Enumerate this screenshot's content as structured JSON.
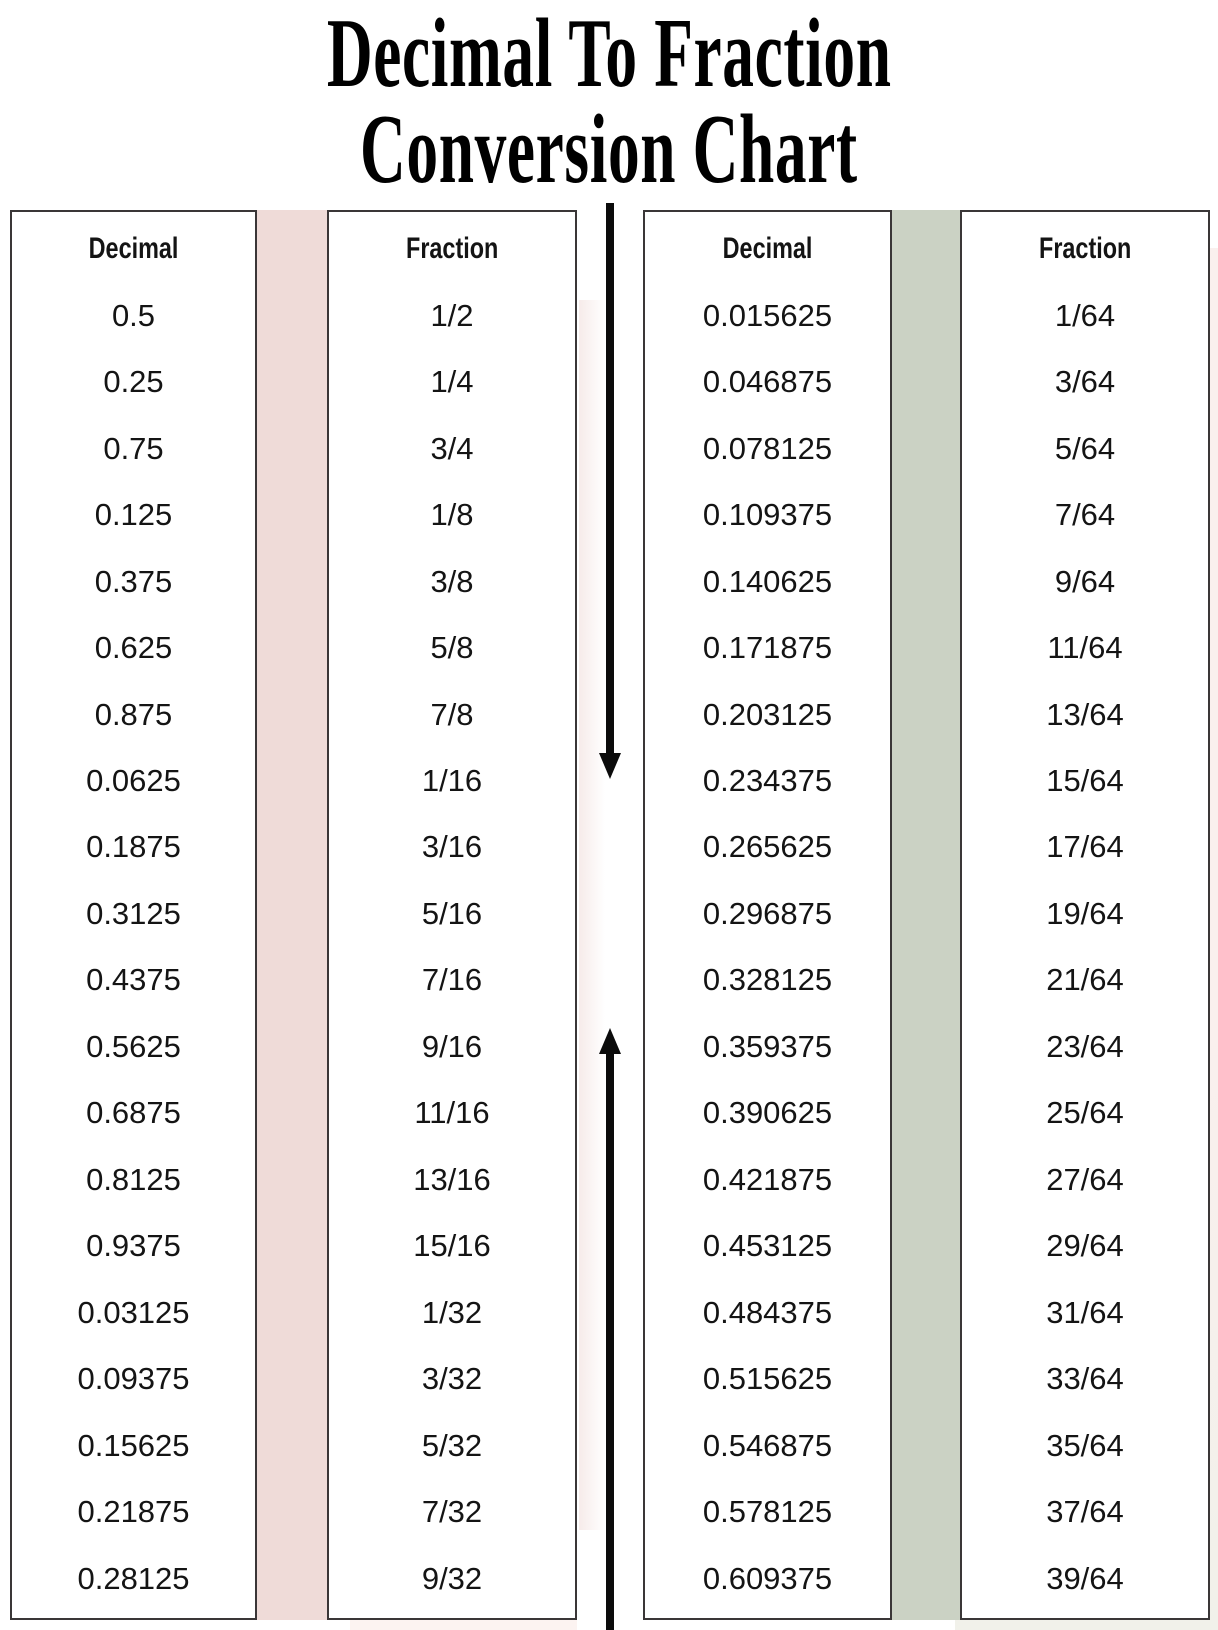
{
  "title": {
    "line1": "Decimal To Fraction",
    "line2": "Conversion Chart"
  },
  "columns": [
    {
      "id": "left-decimal",
      "header": "Decimal",
      "values": [
        "0.5",
        "0.25",
        "0.75",
        "0.125",
        "0.375",
        "0.625",
        "0.875",
        "0.0625",
        "0.1875",
        "0.3125",
        "0.4375",
        "0.5625",
        "0.6875",
        "0.8125",
        "0.9375",
        "0.03125",
        "0.09375",
        "0.15625",
        "0.21875",
        "0.28125"
      ]
    },
    {
      "id": "left-fraction",
      "header": "Fraction",
      "values": [
        "1/2",
        "1/4",
        "3/4",
        "1/8",
        "3/8",
        "5/8",
        "7/8",
        "1/16",
        "3/16",
        "5/16",
        "7/16",
        "9/16",
        "11/16",
        "13/16",
        "15/16",
        "1/32",
        "3/32",
        "5/32",
        "7/32",
        "9/32"
      ]
    },
    {
      "id": "right-decimal",
      "header": "Decimal",
      "values": [
        "0.015625",
        "0.046875",
        "0.078125",
        "0.109375",
        "0.140625",
        "0.171875",
        "0.203125",
        "0.234375",
        "0.265625",
        "0.296875",
        "0.328125",
        "0.359375",
        "0.390625",
        "0.421875",
        "0.453125",
        "0.484375",
        "0.515625",
        "0.546875",
        "0.578125",
        "0.609375"
      ]
    },
    {
      "id": "right-fraction",
      "header": "Fraction",
      "values": [
        "1/64",
        "3/64",
        "5/64",
        "7/64",
        "9/64",
        "11/64",
        "13/64",
        "15/64",
        "17/64",
        "19/64",
        "21/64",
        "23/64",
        "25/64",
        "27/64",
        "29/64",
        "31/64",
        "33/64",
        "35/64",
        "37/64",
        "39/64"
      ]
    }
  ],
  "icons": {
    "down_arrow": "long-arrow-down",
    "up_arrow": "long-arrow-up"
  },
  "colors": {
    "stripe_pink": "#EFDBD8",
    "stripe_green": "#CBD2C4",
    "border": "#3A3637",
    "text": "#141414",
    "arrow": "#0B0B0B",
    "page_bg": "#FFFFFF"
  }
}
